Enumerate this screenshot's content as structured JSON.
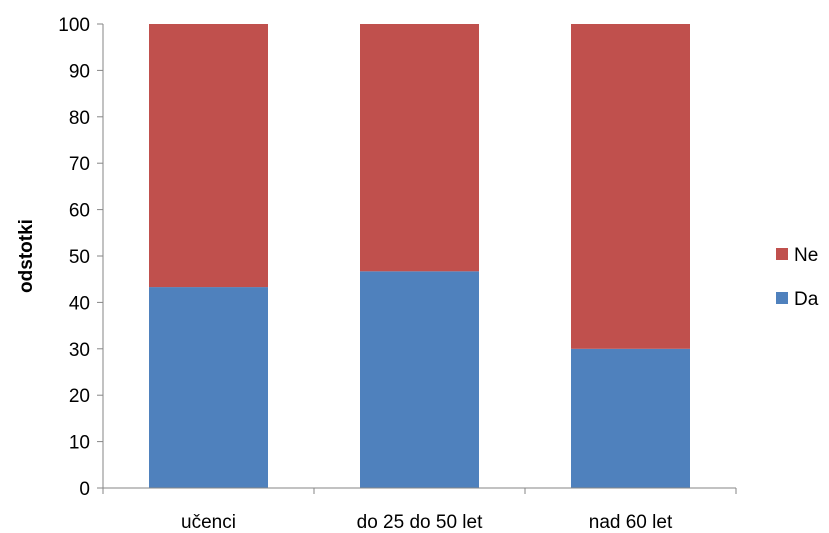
{
  "chart_data": {
    "type": "bar",
    "stacked": true,
    "categories": [
      "učenci",
      "do 25 do 50 let",
      "nad 60 let"
    ],
    "series": [
      {
        "name": "Da",
        "values": [
          43.3,
          46.7,
          30.0
        ],
        "color": "#4F81BD"
      },
      {
        "name": "Ne",
        "values": [
          56.7,
          53.3,
          70.0
        ],
        "color": "#C0504D"
      }
    ],
    "title": "",
    "xlabel": "",
    "ylabel": "odstotki",
    "ylim": [
      0,
      100
    ],
    "yticks": [
      "0",
      "10",
      "20",
      "30",
      "40",
      "50",
      "60",
      "70",
      "80",
      "90",
      "100"
    ],
    "grid": false,
    "legend": {
      "position": "right",
      "order": [
        "Ne",
        "Da"
      ]
    }
  }
}
